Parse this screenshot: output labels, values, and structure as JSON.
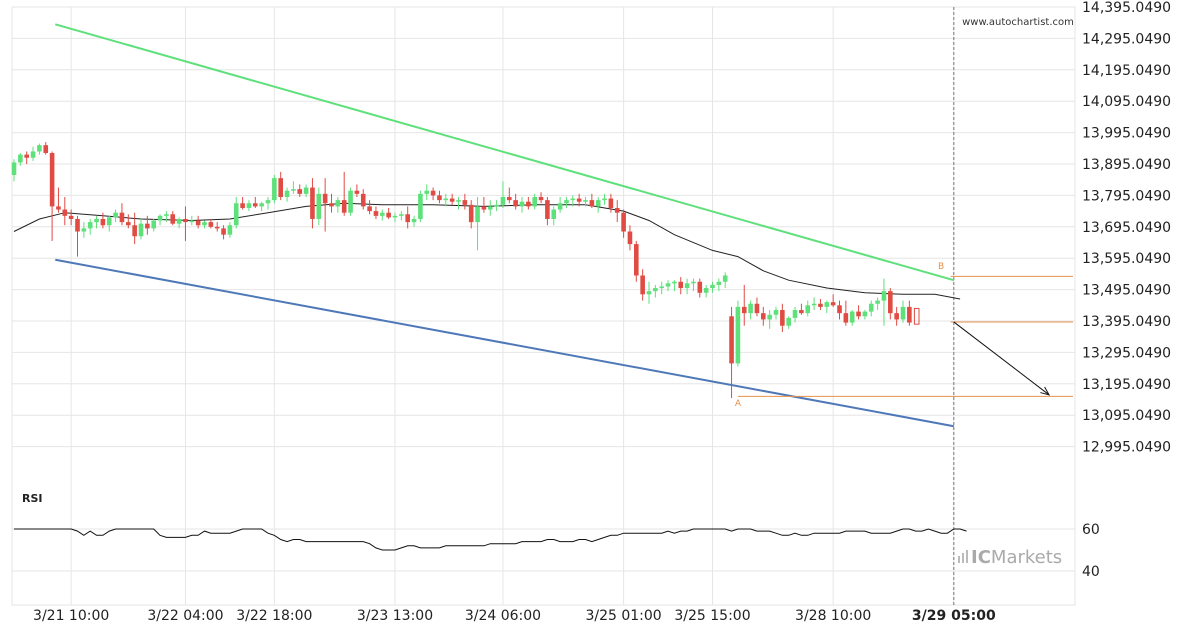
{
  "watermark": "www.autochartist.com",
  "rsi_label": "RSI",
  "brand": {
    "name": "ICMarkets",
    "prefix": "IC",
    "suffix": "Markets"
  },
  "colors": {
    "bull": "#5ee07a",
    "bear": "#e04b44",
    "upper_line": "#5ee07a",
    "lower_line": "#4e78b8",
    "level_line": "#e7914a",
    "ma_line": "#222222",
    "rsi_line": "#111111",
    "grid": "#e6e6e6",
    "brand_text": "#aaaaaa"
  },
  "chart_data": {
    "type": "candlestick",
    "ylim": [
      12895.049,
      14395.049
    ],
    "y_ticks": [
      {
        "value": 14395.049,
        "label": "14,395.0490"
      },
      {
        "value": 14295.049,
        "label": "14,295.0490"
      },
      {
        "value": 14195.049,
        "label": "14,195.0490"
      },
      {
        "value": 14095.049,
        "label": "14,095.0490"
      },
      {
        "value": 13995.049,
        "label": "13,995.0490"
      },
      {
        "value": 13895.049,
        "label": "13,895.0490"
      },
      {
        "value": 13795.049,
        "label": "13,795.0490"
      },
      {
        "value": 13695.049,
        "label": "13,695.0490"
      },
      {
        "value": 13595.049,
        "label": "13,595.0490"
      },
      {
        "value": 13495.049,
        "label": "13,495.0490"
      },
      {
        "value": 13395.049,
        "label": "13,395.0490"
      },
      {
        "value": 13295.049,
        "label": "13,295.0490"
      },
      {
        "value": 13195.049,
        "label": "13,195.0490"
      },
      {
        "value": 13095.049,
        "label": "13,095.0490"
      },
      {
        "value": 12995.049,
        "label": "12,995.0490"
      }
    ],
    "x_ticks": [
      {
        "i": 9,
        "label": "3/21 10:00"
      },
      {
        "i": 27,
        "label": "3/22 04:00"
      },
      {
        "i": 41,
        "label": "3/22 18:00"
      },
      {
        "i": 60,
        "label": "3/23 13:00"
      },
      {
        "i": 77,
        "label": "3/24 06:00"
      },
      {
        "i": 96,
        "label": "3/25 01:00"
      },
      {
        "i": 110,
        "label": "3/25 15:00"
      },
      {
        "i": 129,
        "label": "3/28 10:00"
      },
      {
        "i": 148,
        "label": "3/29 05:00",
        "bold": true
      }
    ],
    "current_index": 148,
    "candles": [
      [
        13860,
        13910,
        13840,
        13900
      ],
      [
        13900,
        13930,
        13890,
        13925
      ],
      [
        13925,
        13935,
        13895,
        13915
      ],
      [
        13915,
        13950,
        13905,
        13935
      ],
      [
        13935,
        13960,
        13925,
        13955
      ],
      [
        13955,
        13965,
        13925,
        13930
      ],
      [
        13930,
        13935,
        13650,
        13760
      ],
      [
        13760,
        13820,
        13740,
        13750
      ],
      [
        13750,
        13790,
        13700,
        13730
      ],
      [
        13730,
        13750,
        13700,
        13720
      ],
      [
        13720,
        13730,
        13600,
        13680
      ],
      [
        13680,
        13710,
        13660,
        13690
      ],
      [
        13690,
        13720,
        13670,
        13710
      ],
      [
        13710,
        13730,
        13690,
        13720
      ],
      [
        13720,
        13740,
        13690,
        13700
      ],
      [
        13700,
        13730,
        13680,
        13725
      ],
      [
        13725,
        13750,
        13710,
        13740
      ],
      [
        13740,
        13770,
        13700,
        13710
      ],
      [
        13710,
        13735,
        13690,
        13700
      ],
      [
        13700,
        13740,
        13640,
        13665
      ],
      [
        13665,
        13720,
        13655,
        13705
      ],
      [
        13705,
        13730,
        13670,
        13690
      ],
      [
        13690,
        13720,
        13680,
        13715
      ],
      [
        13715,
        13735,
        13700,
        13730
      ],
      [
        13730,
        13745,
        13710,
        13735
      ],
      [
        13735,
        13745,
        13700,
        13705
      ],
      [
        13705,
        13725,
        13690,
        13720
      ],
      [
        13720,
        13760,
        13650,
        13710
      ],
      [
        13710,
        13730,
        13700,
        13715
      ],
      [
        13715,
        13730,
        13690,
        13700
      ],
      [
        13700,
        13715,
        13690,
        13710
      ],
      [
        13710,
        13720,
        13690,
        13695
      ],
      [
        13695,
        13710,
        13680,
        13690
      ],
      [
        13690,
        13700,
        13655,
        13670
      ],
      [
        13670,
        13710,
        13660,
        13700
      ],
      [
        13700,
        13790,
        13690,
        13770
      ],
      [
        13770,
        13790,
        13750,
        13755
      ],
      [
        13755,
        13780,
        13745,
        13770
      ],
      [
        13770,
        13790,
        13755,
        13760
      ],
      [
        13760,
        13775,
        13745,
        13770
      ],
      [
        13770,
        13790,
        13750,
        13780
      ],
      [
        13780,
        13860,
        13770,
        13850
      ],
      [
        13850,
        13870,
        13780,
        13790
      ],
      [
        13790,
        13820,
        13775,
        13810
      ],
      [
        13810,
        13840,
        13800,
        13815
      ],
      [
        13815,
        13830,
        13790,
        13800
      ],
      [
        13800,
        13830,
        13790,
        13820
      ],
      [
        13820,
        13850,
        13690,
        13720
      ],
      [
        13720,
        13820,
        13700,
        13800
      ],
      [
        13800,
        13850,
        13680,
        13770
      ],
      [
        13770,
        13800,
        13740,
        13760
      ],
      [
        13760,
        13790,
        13740,
        13780
      ],
      [
        13780,
        13870,
        13730,
        13740
      ],
      [
        13740,
        13820,
        13730,
        13810
      ],
      [
        13810,
        13830,
        13790,
        13800
      ],
      [
        13800,
        13815,
        13750,
        13760
      ],
      [
        13760,
        13780,
        13735,
        13745
      ],
      [
        13745,
        13760,
        13720,
        13730
      ],
      [
        13730,
        13750,
        13715,
        13740
      ],
      [
        13740,
        13755,
        13720,
        13725
      ],
      [
        13725,
        13740,
        13710,
        13730
      ],
      [
        13730,
        13745,
        13715,
        13735
      ],
      [
        13735,
        13760,
        13690,
        13710
      ],
      [
        13710,
        13730,
        13695,
        13720
      ],
      [
        13720,
        13810,
        13710,
        13800
      ],
      [
        13800,
        13830,
        13780,
        13810
      ],
      [
        13810,
        13820,
        13780,
        13795
      ],
      [
        13795,
        13810,
        13770,
        13780
      ],
      [
        13780,
        13800,
        13760,
        13785
      ],
      [
        13785,
        13800,
        13765,
        13775
      ],
      [
        13775,
        13790,
        13750,
        13780
      ],
      [
        13780,
        13800,
        13750,
        13765
      ],
      [
        13765,
        13780,
        13690,
        13710
      ],
      [
        13710,
        13790,
        13620,
        13760
      ],
      [
        13760,
        13790,
        13740,
        13750
      ],
      [
        13750,
        13780,
        13730,
        13760
      ],
      [
        13760,
        13780,
        13745,
        13765
      ],
      [
        13765,
        13840,
        13755,
        13790
      ],
      [
        13790,
        13820,
        13770,
        13780
      ],
      [
        13780,
        13800,
        13750,
        13760
      ],
      [
        13760,
        13790,
        13740,
        13775
      ],
      [
        13775,
        13790,
        13750,
        13760
      ],
      [
        13760,
        13800,
        13750,
        13790
      ],
      [
        13790,
        13805,
        13770,
        13780
      ],
      [
        13780,
        13790,
        13700,
        13720
      ],
      [
        13720,
        13760,
        13700,
        13750
      ],
      [
        13750,
        13790,
        13740,
        13770
      ],
      [
        13770,
        13790,
        13755,
        13780
      ],
      [
        13780,
        13795,
        13760,
        13785
      ],
      [
        13785,
        13800,
        13760,
        13775
      ],
      [
        13775,
        13790,
        13760,
        13780
      ],
      [
        13780,
        13800,
        13755,
        13760
      ],
      [
        13760,
        13790,
        13740,
        13780
      ],
      [
        13780,
        13800,
        13765,
        13785
      ],
      [
        13785,
        13800,
        13740,
        13755
      ],
      [
        13755,
        13780,
        13710,
        13740
      ],
      [
        13740,
        13750,
        13660,
        13680
      ],
      [
        13680,
        13700,
        13620,
        13640
      ],
      [
        13640,
        13650,
        13520,
        13540
      ],
      [
        13540,
        13560,
        13460,
        13480
      ],
      [
        13480,
        13520,
        13450,
        13490
      ],
      [
        13490,
        13510,
        13470,
        13500
      ],
      [
        13500,
        13520,
        13480,
        13505
      ],
      [
        13505,
        13525,
        13490,
        13515
      ],
      [
        13515,
        13525,
        13490,
        13520
      ],
      [
        13520,
        13535,
        13480,
        13500
      ],
      [
        13500,
        13530,
        13480,
        13515
      ],
      [
        13515,
        13530,
        13490,
        13520
      ],
      [
        13520,
        13530,
        13470,
        13485
      ],
      [
        13485,
        13510,
        13470,
        13500
      ],
      [
        13500,
        13520,
        13485,
        13510
      ],
      [
        13510,
        13530,
        13490,
        13520
      ],
      [
        13520,
        13550,
        13500,
        13540
      ],
      [
        13410,
        13440,
        13150,
        13260
      ],
      [
        13260,
        13460,
        13250,
        13440
      ],
      [
        13440,
        13510,
        13380,
        13420
      ],
      [
        13420,
        13460,
        13400,
        13450
      ],
      [
        13450,
        13470,
        13410,
        13420
      ],
      [
        13420,
        13440,
        13380,
        13400
      ],
      [
        13400,
        13430,
        13370,
        13415
      ],
      [
        13415,
        13440,
        13400,
        13430
      ],
      [
        13430,
        13450,
        13360,
        13380
      ],
      [
        13380,
        13410,
        13370,
        13405
      ],
      [
        13405,
        13440,
        13390,
        13430
      ],
      [
        13430,
        13450,
        13415,
        13420
      ],
      [
        13420,
        13460,
        13410,
        13445
      ],
      [
        13445,
        13470,
        13430,
        13450
      ],
      [
        13450,
        13465,
        13430,
        13440
      ],
      [
        13440,
        13460,
        13420,
        13455
      ],
      [
        13455,
        13480,
        13440,
        13445
      ],
      [
        13445,
        13460,
        13400,
        13420
      ],
      [
        13420,
        13460,
        13380,
        13390
      ],
      [
        13390,
        13430,
        13380,
        13425
      ],
      [
        13425,
        13445,
        13400,
        13410
      ],
      [
        13410,
        13430,
        13400,
        13425
      ],
      [
        13425,
        13460,
        13410,
        13450
      ],
      [
        13450,
        13470,
        13430,
        13460
      ],
      [
        13460,
        13530,
        13380,
        13490
      ],
      [
        13490,
        13500,
        13400,
        13420
      ],
      [
        13420,
        13440,
        13380,
        13400
      ],
      [
        13400,
        13460,
        13390,
        13440
      ],
      [
        13440,
        13460,
        13380,
        13390
      ]
    ],
    "moving_average": [
      [
        0,
        13680
      ],
      [
        4,
        13720
      ],
      [
        8,
        13740
      ],
      [
        14,
        13730
      ],
      [
        20,
        13720
      ],
      [
        28,
        13715
      ],
      [
        34,
        13720
      ],
      [
        40,
        13740
      ],
      [
        46,
        13760
      ],
      [
        52,
        13770
      ],
      [
        58,
        13765
      ],
      [
        66,
        13765
      ],
      [
        74,
        13760
      ],
      [
        82,
        13765
      ],
      [
        90,
        13765
      ],
      [
        96,
        13745
      ],
      [
        100,
        13715
      ],
      [
        104,
        13670
      ],
      [
        110,
        13620
      ],
      [
        114,
        13600
      ],
      [
        118,
        13555
      ],
      [
        122,
        13525
      ],
      [
        128,
        13500
      ],
      [
        134,
        13485
      ],
      [
        140,
        13480
      ],
      [
        145,
        13480
      ],
      [
        149,
        13465
      ]
    ],
    "trendlines": [
      {
        "name": "upper",
        "from": [
          6.5,
          14340
        ],
        "to": [
          148,
          13525
        ]
      },
      {
        "name": "lower",
        "from": [
          6.5,
          13590
        ],
        "to": [
          148,
          13060
        ]
      }
    ],
    "levels": [
      {
        "name": "B-level",
        "value": 13537,
        "from": 147.5
      },
      {
        "name": "current",
        "value": 13392,
        "from": 147.5
      },
      {
        "name": "A-level",
        "value": 13155,
        "from": 114
      }
    ],
    "point_labels": [
      {
        "text": "A",
        "i": 114,
        "value": 13125
      },
      {
        "text": "B",
        "i": 146,
        "value": 13560
      }
    ],
    "forecast_arrow": {
      "from": [
        148,
        13392
      ],
      "to": [
        163,
        13160
      ]
    },
    "rsi": {
      "ylim": [
        30,
        70
      ],
      "ticks": [
        {
          "value": 60,
          "label": "60"
        },
        {
          "value": 40,
          "label": "40"
        }
      ],
      "values": [
        60,
        60,
        60,
        60,
        60,
        60,
        60,
        60,
        60,
        60,
        59,
        57,
        59,
        57,
        57,
        59,
        60,
        60,
        60,
        60,
        60,
        60,
        60,
        57,
        56,
        56,
        56,
        56,
        57,
        57,
        59,
        58,
        58,
        58,
        58,
        59,
        60,
        60,
        60,
        60,
        58,
        57,
        55,
        54,
        55,
        55,
        54,
        54,
        54,
        54,
        54,
        54,
        54,
        54,
        54,
        54,
        53,
        51,
        50,
        50,
        50,
        51,
        52,
        52,
        51,
        51,
        51,
        51,
        52,
        52,
        52,
        52,
        52,
        52,
        52,
        53,
        53,
        53,
        53,
        53,
        54,
        54,
        54,
        54,
        55,
        55,
        54,
        54,
        54,
        55,
        55,
        54,
        55,
        56,
        57,
        57,
        58,
        58,
        58,
        58,
        58,
        58,
        58,
        59,
        58,
        59,
        59,
        60,
        60,
        60,
        60,
        60,
        60,
        59,
        60,
        60,
        60,
        59,
        59,
        59,
        58,
        57,
        57,
        58,
        57,
        57,
        58,
        58,
        58,
        58,
        58,
        59,
        59,
        59,
        59,
        58,
        58,
        58,
        58,
        59,
        60,
        60,
        59,
        59,
        60,
        59,
        58,
        58,
        60,
        60,
        59
      ]
    }
  }
}
